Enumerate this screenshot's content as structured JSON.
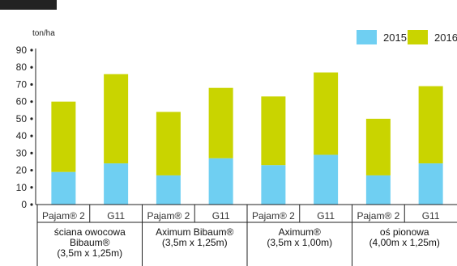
{
  "chart_data": {
    "type": "bar",
    "stacked": true,
    "ylabel": "ton/ha",
    "ylim": [
      0,
      90
    ],
    "yticks": [
      0,
      10,
      20,
      30,
      40,
      50,
      60,
      70,
      80,
      90
    ],
    "grid": false,
    "legend_position": "top-right",
    "categories": [
      "Pajam® 2",
      "G11",
      "Pajam® 2",
      "G11",
      "Pajam® 2",
      "G11",
      "Pajam® 2",
      "G11"
    ],
    "groups": [
      {
        "label_lines": [
          "ściana owocowa",
          "Bibaum®",
          "(3,5m x 1,25m)"
        ]
      },
      {
        "label_lines": [
          "Aximum Bibaum®",
          "(3,5m x 1,25m)"
        ]
      },
      {
        "label_lines": [
          "Aximum®",
          "(3,5m x 1,00m)"
        ]
      },
      {
        "label_lines": [
          "oś pionowa",
          "(4,00m x 1,25m)"
        ]
      }
    ],
    "series": [
      {
        "name": "2015",
        "color": "#6fcff2",
        "values": [
          19,
          24,
          17,
          27,
          23,
          29,
          17,
          24
        ]
      },
      {
        "name": "2016",
        "color": "#c9d400",
        "values": [
          41,
          52,
          37,
          41,
          40,
          48,
          33,
          45
        ]
      }
    ]
  }
}
